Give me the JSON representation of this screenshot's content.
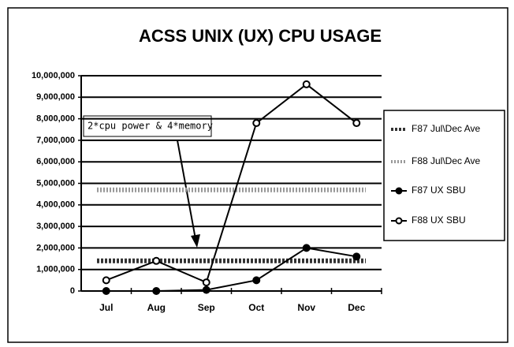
{
  "chart_data": {
    "type": "line",
    "title": "ACSS UNIX (UX) CPU USAGE",
    "categories": [
      "Jul",
      "Aug",
      "Sep",
      "Oct",
      "Nov",
      "Dec"
    ],
    "series": [
      {
        "name": "F87 Jul\\Dec Ave",
        "color": "#333333",
        "style": "band",
        "marker": null,
        "values": [
          1400000,
          1400000,
          1400000,
          1400000,
          1400000,
          1400000
        ]
      },
      {
        "name": "F88 Jul\\Dec Ave",
        "color": "#999999",
        "style": "band",
        "marker": null,
        "values": [
          4700000,
          4700000,
          4700000,
          4700000,
          4700000,
          4700000
        ]
      },
      {
        "name": "F87 UX SBU",
        "color": "#000000",
        "style": "line",
        "marker": "filled",
        "values": [
          0,
          0,
          50000,
          500000,
          2000000,
          1600000
        ]
      },
      {
        "name": "F88 UX SBU",
        "color": "#000000",
        "style": "line",
        "marker": "open",
        "values": [
          500000,
          1400000,
          400000,
          7800000,
          9600000,
          7800000
        ]
      }
    ],
    "ylim": [
      0,
      10000000
    ],
    "yticks": [
      0,
      {
        "value": 1000000,
        "label": "1,000,000"
      },
      {
        "value": 2000000,
        "label": "2,000,000"
      },
      {
        "value": 3000000,
        "label": "3,000,000"
      },
      {
        "value": 4000000,
        "label": "4,000,000"
      },
      {
        "value": 5000000,
        "label": "5,000,000"
      },
      {
        "value": 6000000,
        "label": "6,000,000"
      },
      {
        "value": 7000000,
        "label": "7,000,000"
      },
      {
        "value": 8000000,
        "label": "8,000,000"
      },
      {
        "value": 9000000,
        "label": "9,000,000"
      },
      {
        "value": 10000000,
        "label": "10,000,000"
      }
    ],
    "grid": true,
    "legend": "right",
    "annotation": "2*cpu power & 4*memory"
  }
}
